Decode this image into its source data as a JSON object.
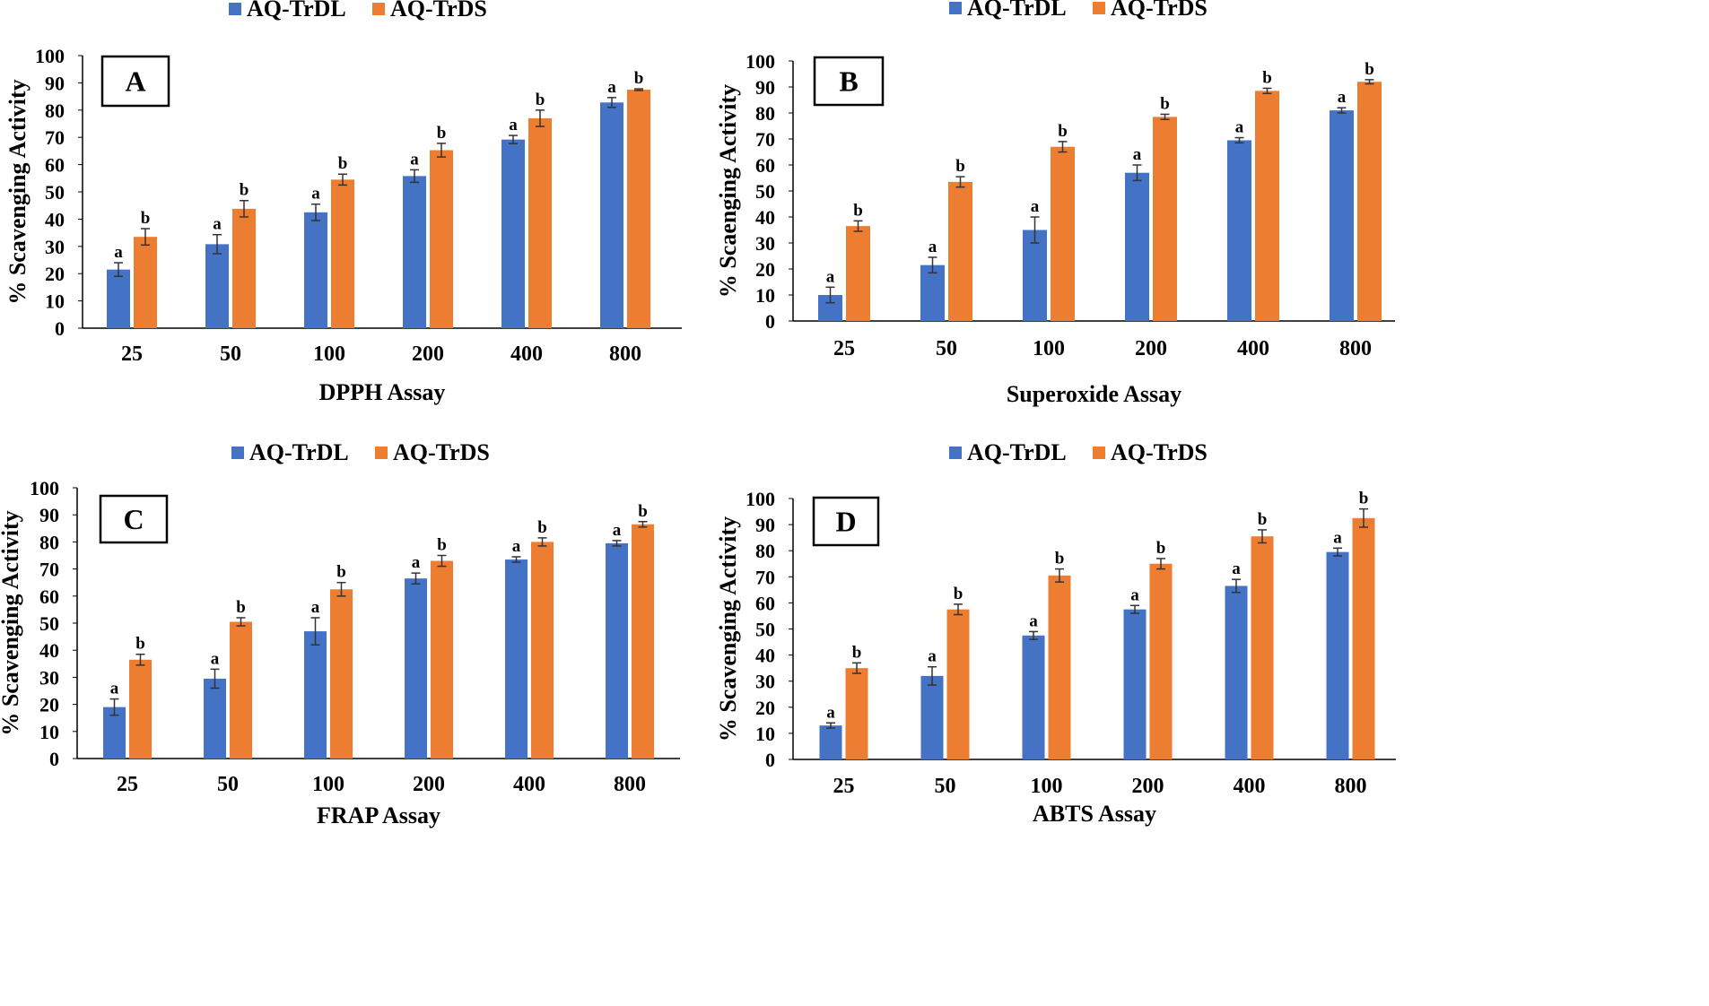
{
  "colors": {
    "s1": "#4472C4",
    "s2": "#ED7D31",
    "axis": "#000000"
  },
  "legend": [
    "AQ-TrDL",
    "AQ-TrDS"
  ],
  "chart_data": [
    {
      "type": "bar",
      "panel": "A",
      "xlabel": "DPPH Assay",
      "ylabel": "% Scavenging  Activity",
      "categories": [
        "25",
        "50",
        "100",
        "200",
        "400",
        "800"
      ],
      "ylim": [
        0,
        100
      ],
      "yticks": [
        "0",
        "10",
        "20",
        "30",
        "40",
        "50",
        "60",
        "70",
        "80",
        "90",
        "100"
      ],
      "series": [
        {
          "name": "AQ-TrDL",
          "values": [
            21.5,
            30.8,
            42.5,
            55.8,
            69.2,
            82.8
          ],
          "errors": [
            2.5,
            3.5,
            3.0,
            2.3,
            1.5,
            1.8
          ],
          "labels": [
            "a",
            "a",
            "a",
            "a",
            "a",
            "a"
          ]
        },
        {
          "name": "AQ-TrDS",
          "values": [
            33.5,
            43.8,
            54.5,
            65.3,
            77.0,
            87.5
          ],
          "errors": [
            3.0,
            3.0,
            2.0,
            2.5,
            3.0,
            0.3
          ],
          "labels": [
            "b",
            "b",
            "b",
            "b",
            "b",
            "b"
          ]
        }
      ]
    },
    {
      "type": "bar",
      "panel": "B",
      "xlabel": "Superoxide Assay",
      "ylabel": "% Scaenging Activity",
      "categories": [
        "25",
        "50",
        "100",
        "200",
        "400",
        "800"
      ],
      "ylim": [
        0,
        100
      ],
      "yticks": [
        "0",
        "10",
        "20",
        "30",
        "40",
        "50",
        "60",
        "70",
        "80",
        "90",
        "100"
      ],
      "series": [
        {
          "name": "AQ-TrDL",
          "values": [
            10.0,
            21.5,
            35.0,
            57.0,
            69.5,
            81.0
          ],
          "errors": [
            3.0,
            3.0,
            5.0,
            3.0,
            1.0,
            1.0
          ],
          "labels": [
            "a",
            "a",
            "a",
            "a",
            "a",
            "a"
          ]
        },
        {
          "name": "AQ-TrDS",
          "values": [
            36.5,
            53.5,
            67.0,
            78.5,
            88.5,
            92.0
          ],
          "errors": [
            2.0,
            2.0,
            2.0,
            1.0,
            1.0,
            0.8
          ],
          "labels": [
            "b",
            "b",
            "b",
            "b",
            "b",
            "b"
          ]
        }
      ]
    },
    {
      "type": "bar",
      "panel": "C",
      "xlabel": "FRAP Assay",
      "ylabel": "% Scavenging Activity",
      "categories": [
        "25",
        "50",
        "100",
        "200",
        "400",
        "800"
      ],
      "ylim": [
        0,
        100
      ],
      "yticks": [
        "0",
        "10",
        "20",
        "30",
        "40",
        "50",
        "60",
        "70",
        "80",
        "90",
        "100"
      ],
      "series": [
        {
          "name": "AQ-TrDL",
          "values": [
            19.0,
            29.5,
            47.0,
            66.5,
            73.5,
            79.5
          ],
          "errors": [
            3.0,
            3.5,
            5.0,
            2.0,
            1.0,
            1.0
          ],
          "labels": [
            "a",
            "a",
            "a",
            "a",
            "a",
            "a"
          ]
        },
        {
          "name": "AQ-TrDS",
          "values": [
            36.5,
            50.5,
            62.5,
            73.0,
            80.0,
            86.5
          ],
          "errors": [
            2.0,
            1.5,
            2.5,
            2.0,
            1.5,
            1.0
          ],
          "labels": [
            "b",
            "b",
            "b",
            "b",
            "b",
            "b"
          ]
        }
      ]
    },
    {
      "type": "bar",
      "panel": "D",
      "xlabel": "ABTS Assay",
      "ylabel": "% Scavenging  Activity",
      "categories": [
        "25",
        "50",
        "100",
        "200",
        "400",
        "800"
      ],
      "ylim": [
        0,
        100
      ],
      "yticks": [
        "0",
        "10",
        "20",
        "30",
        "40",
        "50",
        "60",
        "70",
        "80",
        "90",
        "100"
      ],
      "series": [
        {
          "name": "AQ-TrDL",
          "values": [
            13.0,
            32.0,
            47.5,
            57.5,
            66.5,
            79.5
          ],
          "errors": [
            1.0,
            3.5,
            1.5,
            1.5,
            2.5,
            1.5
          ],
          "labels": [
            "a",
            "a",
            "a",
            "a",
            "a",
            "a"
          ]
        },
        {
          "name": "AQ-TrDS",
          "values": [
            35.0,
            57.5,
            70.5,
            75.0,
            85.5,
            92.5
          ],
          "errors": [
            2.0,
            2.0,
            2.5,
            2.0,
            2.5,
            3.5
          ],
          "labels": [
            "b",
            "b",
            "b",
            "b",
            "b",
            "b"
          ]
        }
      ]
    }
  ]
}
